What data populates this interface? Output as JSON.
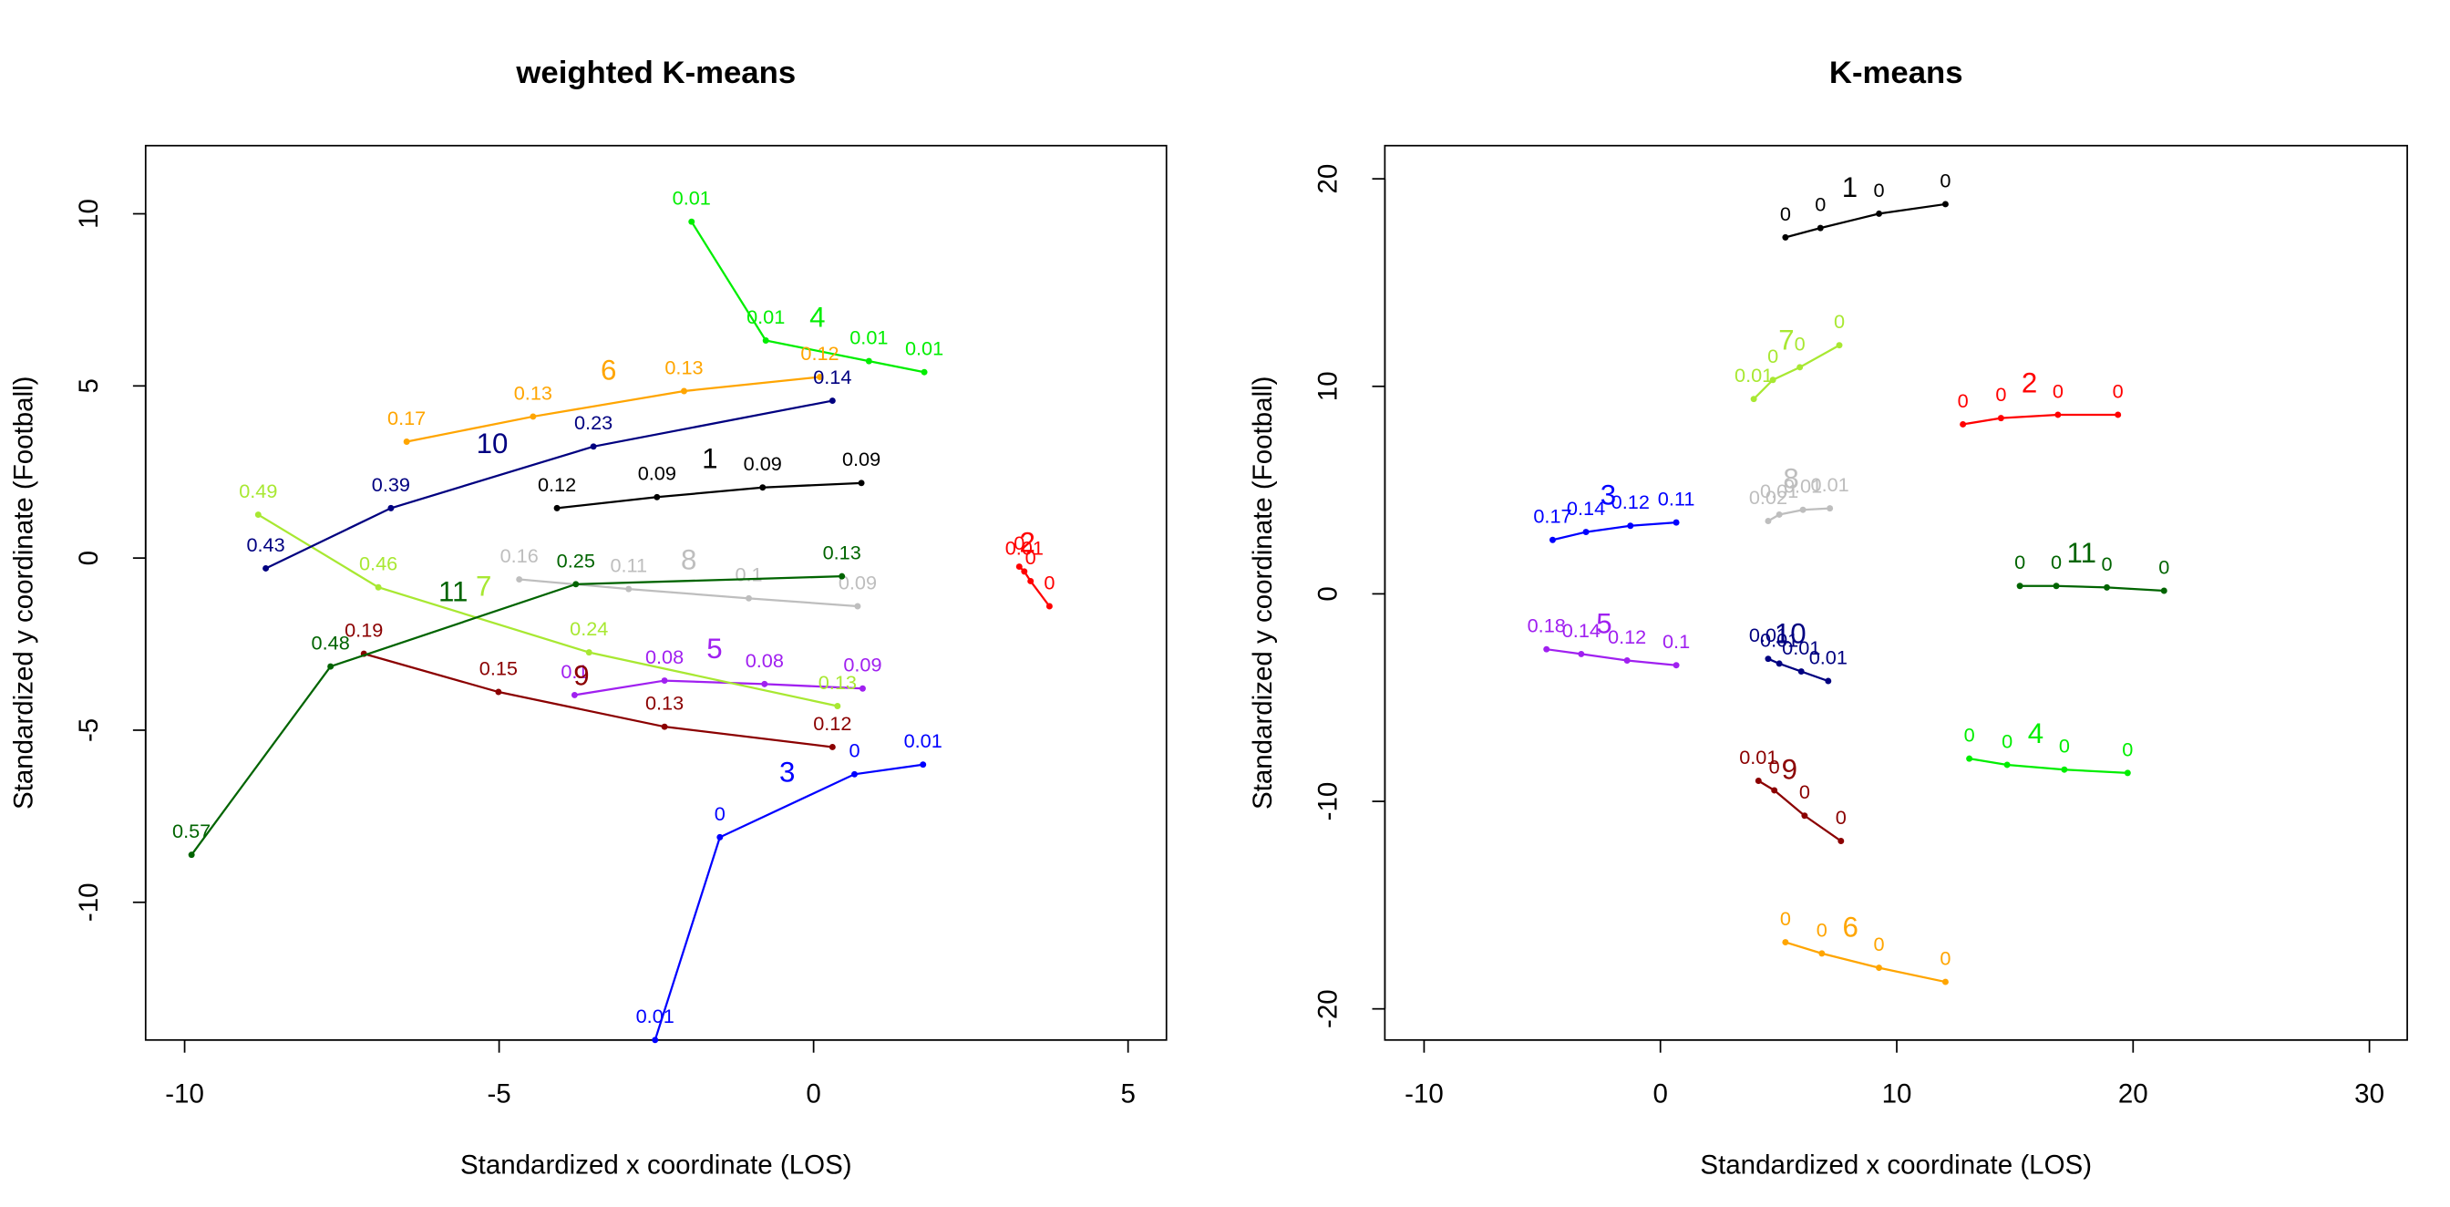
{
  "chart_data": [
    {
      "type": "line",
      "title": "weighted K-means",
      "xlabel": "Standardized x coordinate (LOS)",
      "ylabel": "Standardized y coordinate (Football)",
      "xlim": [
        -10.62,
        5.61
      ],
      "ylim": [
        -14.0,
        11.98
      ],
      "xticks": [
        -10,
        -5,
        0,
        5
      ],
      "yticks": [
        -10,
        -5,
        0,
        5,
        10
      ],
      "series": [
        {
          "name": "1",
          "color": "#000000",
          "x": [
            -4.08,
            -2.49,
            -0.81,
            0.76
          ],
          "values": [
            1.45,
            1.77,
            2.05,
            2.18
          ],
          "weights": [
            0.12,
            0.09,
            0.09,
            0.09
          ]
        },
        {
          "name": "2",
          "color": "#ff0000",
          "x": [
            3.27,
            3.35,
            3.45,
            3.75
          ],
          "values": [
            -0.25,
            -0.39,
            -0.67,
            -1.4
          ],
          "weights": [
            0,
            0.01,
            0,
            0
          ]
        },
        {
          "name": "3",
          "color": "#0000ff",
          "x": [
            -2.52,
            -1.49,
            0.65,
            1.74
          ],
          "values": [
            -14.0,
            -8.11,
            -6.28,
            -6.0
          ],
          "weights": [
            0.01,
            0,
            0,
            0.01
          ]
        },
        {
          "name": "4",
          "color": "#00ee00",
          "x": [
            -1.94,
            -0.76,
            0.88,
            1.76
          ],
          "values": [
            9.77,
            6.32,
            5.72,
            5.4
          ],
          "weights": [
            0.01,
            0.01,
            0.01,
            0.01
          ]
        },
        {
          "name": "5",
          "color": "#a020f0",
          "x": [
            -3.8,
            -2.37,
            -0.78,
            0.78
          ],
          "values": [
            -3.98,
            -3.56,
            -3.66,
            -3.79
          ],
          "weights": [
            0.1,
            0.08,
            0.08,
            0.09
          ]
        },
        {
          "name": "6",
          "color": "#ffa500",
          "x": [
            -6.47,
            -4.46,
            -2.06,
            0.1
          ],
          "values": [
            3.38,
            4.11,
            4.85,
            5.26
          ],
          "weights": [
            0.17,
            0.13,
            0.13,
            0.12
          ]
        },
        {
          "name": "7",
          "color": "#a8e832",
          "x": [
            -8.83,
            -6.92,
            -3.57,
            0.38
          ],
          "values": [
            1.26,
            -0.85,
            -2.74,
            -4.3
          ],
          "weights": [
            0.49,
            0.46,
            0.24,
            0.13
          ]
        },
        {
          "name": "8",
          "color": "#bebebe",
          "x": [
            -4.68,
            -2.94,
            -1.03,
            0.7
          ],
          "values": [
            -0.62,
            -0.9,
            -1.17,
            -1.4
          ],
          "weights": [
            0.16,
            0.11,
            0.1,
            0.09
          ]
        },
        {
          "name": "9",
          "color": "#8b0000",
          "x": [
            -7.15,
            -5.01,
            -2.37,
            0.3
          ],
          "values": [
            -2.78,
            -3.89,
            -4.9,
            -5.49
          ],
          "weights": [
            0.19,
            0.15,
            0.13,
            0.12
          ]
        },
        {
          "name": "10",
          "color": "#000080",
          "x": [
            -8.71,
            -6.72,
            -3.5,
            0.3
          ],
          "values": [
            -0.3,
            1.45,
            3.24,
            4.57
          ],
          "weights": [
            0.43,
            0.39,
            0.23,
            0.14
          ]
        },
        {
          "name": "11",
          "color": "#006400",
          "x": [
            -9.89,
            -7.68,
            -3.78,
            0.45
          ],
          "values": [
            -8.62,
            -3.15,
            -0.76,
            -0.53
          ],
          "weights": [
            0.57,
            0.48,
            0.25,
            0.13
          ]
        }
      ]
    },
    {
      "type": "line",
      "title": "K-means",
      "xlabel": "Standardized x coordinate (LOS)",
      "ylabel": "Standardized y coordinate (Football)",
      "xlim": [
        -11.66,
        31.6
      ],
      "ylim": [
        -21.5,
        21.6
      ],
      "xticks": [
        -10,
        0,
        10,
        20,
        30
      ],
      "yticks": [
        -20,
        -10,
        0,
        10,
        20
      ],
      "series": [
        {
          "name": "1",
          "color": "#000000",
          "x": [
            5.29,
            6.77,
            9.25,
            12.06
          ],
          "values": [
            17.18,
            17.63,
            18.32,
            18.78
          ],
          "weights": [
            0,
            0,
            0,
            0
          ]
        },
        {
          "name": "2",
          "color": "#ff0000",
          "x": [
            12.8,
            14.41,
            16.82,
            19.36
          ],
          "values": [
            8.17,
            8.47,
            8.63,
            8.63
          ],
          "weights": [
            0,
            0,
            0,
            0
          ]
        },
        {
          "name": "3",
          "color": "#0000ff",
          "x": [
            -4.56,
            -3.15,
            -1.27,
            0.67
          ],
          "values": [
            2.6,
            2.98,
            3.28,
            3.44
          ],
          "weights": [
            0.17,
            0.14,
            0.12,
            0.11
          ]
        },
        {
          "name": "4",
          "color": "#00ee00",
          "x": [
            13.07,
            14.67,
            17.09,
            19.77
          ],
          "values": [
            -7.94,
            -8.24,
            -8.47,
            -8.63
          ],
          "weights": [
            0,
            0,
            0,
            0
          ]
        },
        {
          "name": "5",
          "color": "#a020f0",
          "x": [
            -4.82,
            -3.35,
            -1.41,
            0.67
          ],
          "values": [
            -2.67,
            -2.9,
            -3.21,
            -3.44
          ],
          "weights": [
            0.18,
            0.14,
            0.12,
            0.1
          ]
        },
        {
          "name": "6",
          "color": "#ffa500",
          "x": [
            5.29,
            6.83,
            9.25,
            12.06
          ],
          "values": [
            -16.79,
            -17.33,
            -18.02,
            -18.7
          ],
          "weights": [
            0,
            0,
            0,
            0
          ]
        },
        {
          "name": "7",
          "color": "#a8e832",
          "x": [
            3.95,
            4.76,
            5.9,
            7.57
          ],
          "values": [
            9.39,
            10.31,
            10.92,
            11.98
          ],
          "weights": [
            0.01,
            0,
            0,
            0
          ]
        },
        {
          "name": "8",
          "color": "#bebebe",
          "x": [
            4.56,
            5.03,
            6.03,
            7.17
          ],
          "values": [
            3.51,
            3.82,
            4.05,
            4.12
          ],
          "weights": [
            0.02,
            0.01,
            0.01,
            0.01
          ]
        },
        {
          "name": "9",
          "color": "#8b0000",
          "x": [
            4.15,
            4.82,
            6.1,
            7.64
          ],
          "values": [
            -9.01,
            -9.47,
            -10.69,
            -11.91
          ],
          "weights": [
            0.01,
            0,
            0,
            0
          ]
        },
        {
          "name": "10",
          "color": "#000080",
          "x": [
            4.56,
            5.03,
            5.96,
            7.1
          ],
          "values": [
            -3.13,
            -3.36,
            -3.74,
            -4.2
          ],
          "weights": [
            0.01,
            0.01,
            0.01,
            0.01
          ]
        },
        {
          "name": "11",
          "color": "#006400",
          "x": [
            15.21,
            16.75,
            18.89,
            21.31
          ],
          "values": [
            0.38,
            0.38,
            0.31,
            0.15
          ],
          "weights": [
            0,
            0,
            0,
            0
          ]
        }
      ]
    }
  ]
}
